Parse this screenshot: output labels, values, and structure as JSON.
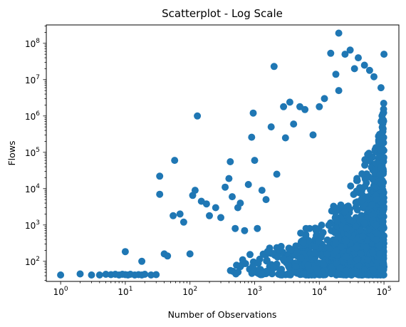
{
  "chart_data": {
    "type": "scatter",
    "title": "Scatterplot - Log Scale",
    "xlabel": "Number of Observations",
    "ylabel": "Flows",
    "xscale": "log",
    "yscale": "log",
    "xlim": [
      0.6,
      170000
    ],
    "ylim": [
      28,
      320000000
    ],
    "xticks": [
      {
        "value": 1,
        "base": "10",
        "exp": "0"
      },
      {
        "value": 10,
        "base": "10",
        "exp": "1"
      },
      {
        "value": 100,
        "base": "10",
        "exp": "2"
      },
      {
        "value": 1000,
        "base": "10",
        "exp": "3"
      },
      {
        "value": 10000,
        "base": "10",
        "exp": "4"
      },
      {
        "value": 100000,
        "base": "10",
        "exp": "5"
      }
    ],
    "yticks": [
      {
        "value": 100,
        "base": "10",
        "exp": "2"
      },
      {
        "value": 1000,
        "base": "10",
        "exp": "3"
      },
      {
        "value": 10000,
        "base": "10",
        "exp": "4"
      },
      {
        "value": 100000,
        "base": "10",
        "exp": "5"
      },
      {
        "value": 1000000,
        "base": "10",
        "exp": "6"
      },
      {
        "value": 10000000,
        "base": "10",
        "exp": "7"
      },
      {
        "value": 100000000,
        "base": "10",
        "exp": "8"
      }
    ],
    "grid": false,
    "color": "#1f77b4",
    "series": [
      {
        "points": [
          [
            1,
            42
          ],
          [
            2,
            45
          ],
          [
            3,
            42
          ],
          [
            4,
            42
          ],
          [
            5,
            44
          ],
          [
            6,
            43
          ],
          [
            7,
            44
          ],
          [
            8,
            42
          ],
          [
            9,
            44
          ],
          [
            10,
            43
          ],
          [
            11,
            42
          ],
          [
            12,
            44
          ],
          [
            14,
            42
          ],
          [
            16,
            43
          ],
          [
            18,
            42
          ],
          [
            20,
            44
          ],
          [
            25,
            42
          ],
          [
            30,
            43
          ],
          [
            10,
            185
          ],
          [
            18,
            100
          ],
          [
            34,
            22000
          ],
          [
            34,
            7000
          ],
          [
            40,
            160
          ],
          [
            45,
            140
          ],
          [
            55,
            1800
          ],
          [
            58,
            60000
          ],
          [
            70,
            2000
          ],
          [
            80,
            1200
          ],
          [
            100,
            160
          ],
          [
            110,
            6500
          ],
          [
            120,
            9000
          ],
          [
            130,
            1000000
          ],
          [
            150,
            4500
          ],
          [
            180,
            3800
          ],
          [
            200,
            1800
          ],
          [
            250,
            3000
          ],
          [
            300,
            1600
          ],
          [
            350,
            11000
          ],
          [
            400,
            19000
          ],
          [
            420,
            55000
          ],
          [
            450,
            6000
          ],
          [
            500,
            800
          ],
          [
            550,
            3000
          ],
          [
            600,
            4000
          ],
          [
            700,
            700
          ],
          [
            800,
            13000
          ],
          [
            900,
            260000
          ],
          [
            950,
            1200000
          ],
          [
            1000,
            60000
          ],
          [
            1100,
            800
          ],
          [
            1300,
            9000
          ],
          [
            1500,
            5000
          ],
          [
            1800,
            500000
          ],
          [
            2000,
            23000000
          ],
          [
            2200,
            25000
          ],
          [
            2800,
            1800000
          ],
          [
            3000,
            250000
          ],
          [
            3500,
            2400000
          ],
          [
            4000,
            600000
          ],
          [
            5000,
            1800000
          ],
          [
            6000,
            1500000
          ],
          [
            8000,
            300000
          ],
          [
            10000,
            1800000
          ],
          [
            12000,
            3000000
          ],
          [
            15000,
            53000000
          ],
          [
            18000,
            14000000
          ],
          [
            20000,
            5000000
          ],
          [
            20000,
            190000000
          ],
          [
            25000,
            50000000
          ],
          [
            30000,
            65000000
          ],
          [
            35000,
            20000000
          ],
          [
            40000,
            40000000
          ],
          [
            50000,
            25000000
          ],
          [
            60000,
            18000000
          ],
          [
            70000,
            12000000
          ],
          [
            90000,
            6000000
          ],
          [
            100000,
            50000000
          ]
        ],
        "clusters": [
          {
            "x": [
              300,
              100000
            ],
            "y": [
              42,
              700
            ]
          },
          {
            "x": [
              800,
              100000
            ],
            "y": [
              42,
              3000
            ]
          },
          {
            "x": [
              3000,
              100000
            ],
            "y": [
              42,
              30000
            ]
          },
          {
            "x": [
              15000,
              100000
            ],
            "y": [
              42,
              600000
            ]
          },
          {
            "x": [
              60000,
              100000
            ],
            "y": [
              42,
              3000000
            ]
          }
        ]
      }
    ]
  }
}
